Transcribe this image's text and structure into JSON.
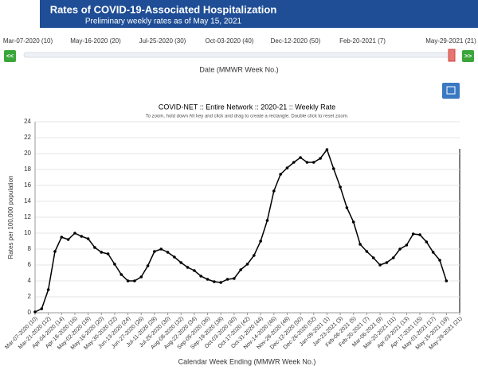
{
  "header": {
    "title": "Rates of COVID-19-Associated Hospitalization",
    "subtitle": "Preliminary weekly rates as of May 15, 2021"
  },
  "slider": {
    "labels": [
      "Mar-07-2020 (10)",
      "May-16-2020 (20)",
      "Jul-25-2020 (30)",
      "Oct-03-2020 (40)",
      "Dec-12-2020 (50)",
      "Feb-20-2021 (7)",
      "May-29-2021 (21)"
    ],
    "prev": "<<",
    "next": ">>",
    "caption": "Date (MMWR Week No.)"
  },
  "chart_data": {
    "type": "line",
    "title": "COVID-NET :: Entire Network :: 2020-21 :: Weekly Rate",
    "subtitle": "To zoom, hold down Alt key and click and drag to create a rectangle. Double click to reset zoom.",
    "ylabel": "Rates per 100,000 population",
    "xlabel": "Calendar Week Ending (MMWR Week No.)",
    "categories": [
      "Mar-07-2020 (10)",
      null,
      "Mar-21-2020 (12)",
      null,
      "Apr-04-2020 (14)",
      null,
      "Apr-18-2020 (16)",
      null,
      "May-02-2020 (18)",
      null,
      "May-16-2020 (20)",
      null,
      "May-30-2020 (22)",
      null,
      "Jun-13-2020 (24)",
      null,
      "Jun-27-2020 (26)",
      null,
      "Jul-11-2020 (28)",
      null,
      "Jul-25-2020 (30)",
      null,
      "Aug-08-2020 (32)",
      null,
      "Aug-22-2020 (34)",
      null,
      "Sep-05-2020 (36)",
      null,
      "Sep-19-2020 (38)",
      null,
      "Oct-03-2020 (40)",
      null,
      "Oct-17-2020 (42)",
      null,
      "Oct-31-2020 (44)",
      null,
      "Nov-14-2020 (46)",
      null,
      "Nov-28-2020 (48)",
      null,
      "Dec-12-2020 (50)",
      null,
      "Dec-26-2020 (52)",
      null,
      "Jan-09-2021 (1)",
      null,
      "Jan-23-2021 (3)",
      null,
      "Feb-06-2021 (5)",
      null,
      "Feb-20-2021 (7)",
      null,
      "Mar-06-2021 (9)",
      null,
      "Mar-20-2021 (11)",
      null,
      "Apr-03-2021 (13)",
      null,
      "Apr-17-2021 (15)",
      null,
      "May-01-2021 (17)",
      null,
      "May-15-2021 (19)",
      null,
      "May-29-2021 (21)"
    ],
    "values": [
      0.1,
      0.5,
      2.9,
      7.7,
      9.5,
      9.2,
      10.0,
      9.6,
      9.3,
      8.2,
      7.6,
      7.4,
      6.1,
      4.8,
      4.0,
      4.0,
      4.5,
      5.9,
      7.7,
      8.0,
      7.6,
      7.0,
      6.3,
      5.7,
      5.3,
      4.6,
      4.2,
      3.9,
      3.8,
      4.2,
      4.3,
      5.4,
      6.1,
      7.2,
      9.0,
      11.6,
      15.3,
      17.4,
      18.2,
      18.9,
      19.5,
      18.9,
      18.9,
      19.4,
      20.5,
      18.1,
      15.8,
      13.2,
      11.4,
      8.6,
      7.7,
      6.9,
      6.0,
      6.3,
      6.9,
      8.0,
      8.5,
      9.9,
      9.8,
      8.9,
      7.6,
      6.6,
      4.0,
      null,
      null
    ],
    "color": "#000000",
    "ylim": [
      0,
      24
    ],
    "yticks": [
      0,
      2,
      4,
      6,
      8,
      10,
      12,
      14,
      16,
      18,
      20,
      22,
      24
    ],
    "grid": true
  }
}
